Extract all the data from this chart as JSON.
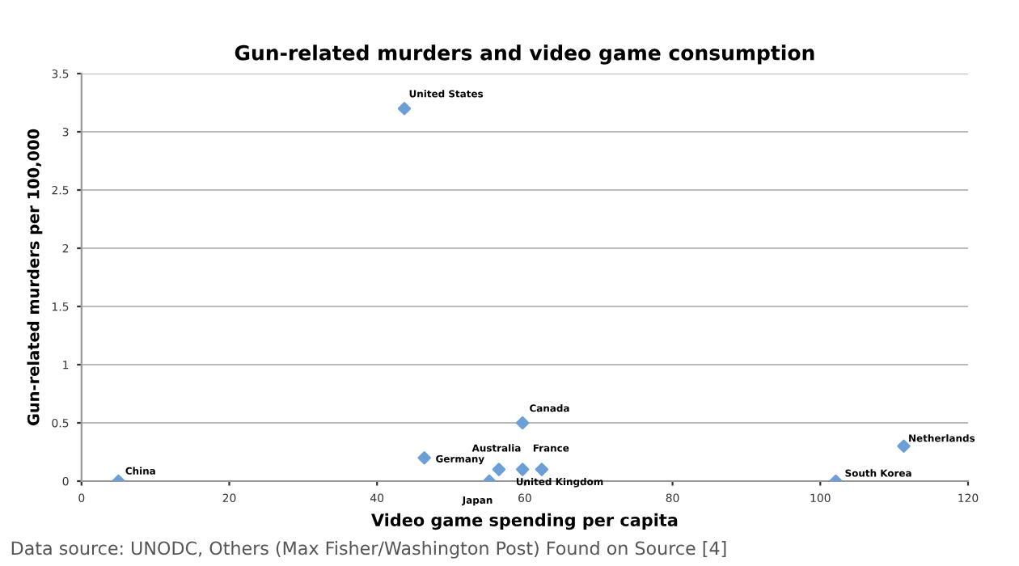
{
  "chart_data": {
    "type": "scatter",
    "title": "Gun-related murders and video game consumption",
    "xlabel": "Video game spending per capita",
    "ylabel": "Gun-related murders per 100,000",
    "series": [
      {
        "color": "#6b9fd6",
        "x": [
          5,
          46.4,
          55.2,
          56.5,
          59.7,
          62.3,
          59.7,
          111.3,
          102.1,
          43.7
        ],
        "values": [
          0,
          0.2,
          0,
          0.1,
          0.1,
          0.1,
          0.5,
          0.3,
          0,
          3.2
        ]
      }
    ],
    "annotations": [
      {
        "text": "China",
        "x": 5,
        "y": 0
      },
      {
        "text": "Germany",
        "x": 46.4,
        "y": 0.2
      },
      {
        "text": "Japan",
        "x": 55.2,
        "y": 0
      },
      {
        "text": "Australia",
        "x": 56.5,
        "y": 0.1
      },
      {
        "text": "United Kingdom",
        "x": 59.7,
        "y": 0.1
      },
      {
        "text": "France",
        "x": 62.3,
        "y": 0.1
      },
      {
        "text": "Canada",
        "x": 59.7,
        "y": 0.5
      },
      {
        "text": "Netherlands",
        "x": 111.3,
        "y": 0.3
      },
      {
        "text": "South Korea",
        "x": 102.1,
        "y": 0
      },
      {
        "text": "United States",
        "x": 43.7,
        "y": 3.2
      },
      "Data source: UNODC, Others (Max Fisher/Washington Post) Found on Source [4]"
    ],
    "xlim": [
      0,
      120
    ],
    "xticks": [
      0,
      20,
      40,
      60,
      80,
      100,
      120
    ],
    "ylim": [
      0,
      3.5
    ],
    "yticks": [
      0,
      0.5,
      1,
      1.5,
      2,
      2.5,
      3,
      3.5
    ],
    "grid": "y",
    "marker": "diamond",
    "legend": false
  }
}
